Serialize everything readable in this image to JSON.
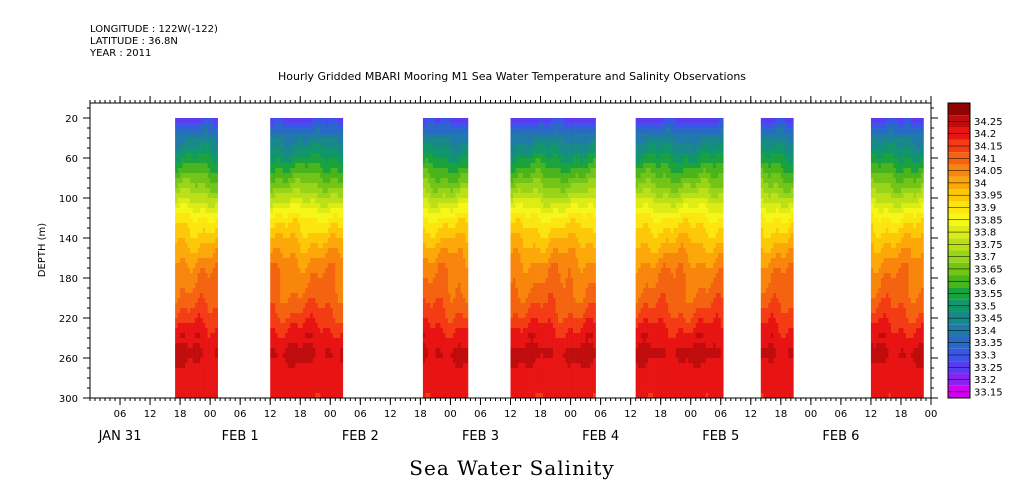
{
  "header": {
    "longitude": "LONGITUDE : 122W(-122)",
    "latitude": "LATITUDE : 36.8N",
    "year": "YEAR : 2011"
  },
  "chart_data": {
    "type": "heatmap",
    "title": "Hourly Gridded MBARI Mooring M1 Sea Water Temperature and Salinity Observations",
    "xlabel": "Sea Water Salinity",
    "ylabel": "DEPTH (m)",
    "ylim": [
      300,
      5
    ],
    "y_ticks": [
      20,
      60,
      100,
      140,
      180,
      220,
      260,
      300
    ],
    "x_hours_range": [
      0,
      168
    ],
    "x_tick_labels": [
      "06",
      "12",
      "18",
      "00",
      "06",
      "12",
      "18",
      "00",
      "06",
      "12",
      "18",
      "00",
      "06",
      "12",
      "18",
      "00",
      "06",
      "12",
      "18",
      "00",
      "06",
      "12",
      "18",
      "00",
      "06",
      "12",
      "18",
      "00"
    ],
    "x_tick_hours": [
      6,
      12,
      18,
      24,
      30,
      36,
      42,
      48,
      54,
      60,
      66,
      72,
      78,
      84,
      90,
      96,
      102,
      108,
      114,
      120,
      126,
      132,
      138,
      144,
      150,
      156,
      162,
      168
    ],
    "day_labels": [
      {
        "text": "JAN 31",
        "hour": 6
      },
      {
        "text": "FEB  1",
        "hour": 30
      },
      {
        "text": "FEB  2",
        "hour": 54
      },
      {
        "text": "FEB  3",
        "hour": 78
      },
      {
        "text": "FEB  4",
        "hour": 102
      },
      {
        "text": "FEB  5",
        "hour": 126
      },
      {
        "text": "FEB  6",
        "hour": 150
      }
    ],
    "data_segments": [
      {
        "start_hour": 17,
        "end_hour": 25.5
      },
      {
        "start_hour": 36,
        "end_hour": 50.5
      },
      {
        "start_hour": 66.5,
        "end_hour": 75.5
      },
      {
        "start_hour": 84,
        "end_hour": 101
      },
      {
        "start_hour": 109,
        "end_hour": 126.5
      },
      {
        "start_hour": 134,
        "end_hour": 140.5
      },
      {
        "start_hour": 156,
        "end_hour": 166.5
      }
    ],
    "depth_profile": [
      {
        "depth": 20,
        "value": 33.22
      },
      {
        "depth": 30,
        "value": 33.32
      },
      {
        "depth": 45,
        "value": 33.42
      },
      {
        "depth": 60,
        "value": 33.5
      },
      {
        "depth": 75,
        "value": 33.58
      },
      {
        "depth": 90,
        "value": 33.66
      },
      {
        "depth": 105,
        "value": 33.76
      },
      {
        "depth": 120,
        "value": 33.86
      },
      {
        "depth": 135,
        "value": 33.92
      },
      {
        "depth": 150,
        "value": 33.97
      },
      {
        "depth": 170,
        "value": 34.03
      },
      {
        "depth": 200,
        "value": 34.07
      },
      {
        "depth": 220,
        "value": 34.12
      },
      {
        "depth": 235,
        "value": 34.17
      },
      {
        "depth": 255,
        "value": 34.21
      },
      {
        "depth": 275,
        "value": 34.18
      },
      {
        "depth": 300,
        "value": 34.16
      }
    ],
    "colorbar": {
      "levels": [
        33.15,
        33.2,
        33.25,
        33.3,
        33.35,
        33.4,
        33.45,
        33.5,
        33.55,
        33.6,
        33.65,
        33.7,
        33.75,
        33.8,
        33.85,
        33.9,
        33.95,
        34,
        34.05,
        34.1,
        34.15,
        34.2,
        34.25
      ],
      "labels": [
        "33.15",
        "33.2",
        "33.25",
        "33.3",
        "33.35",
        "33.4",
        "33.45",
        "33.5",
        "33.55",
        "33.6",
        "33.65",
        "33.7",
        "33.75",
        "33.8",
        "33.85",
        "33.9",
        "33.95",
        "34",
        "34.05",
        "34.1",
        "34.15",
        "34.2",
        "34.25"
      ],
      "colors": [
        "#d400f0",
        "#8a22f2",
        "#5a3cf0",
        "#3a55e8",
        "#2a68c8",
        "#1f7aa8",
        "#18888a",
        "#10966a",
        "#1aa23e",
        "#4ab41c",
        "#72c418",
        "#98d418",
        "#bce018",
        "#dcec14",
        "#f6f618",
        "#fce610",
        "#fcc808",
        "#fca808",
        "#f8860c",
        "#f46410",
        "#f43c14",
        "#e81414",
        "#c00c0c",
        "#900404"
      ]
    }
  }
}
